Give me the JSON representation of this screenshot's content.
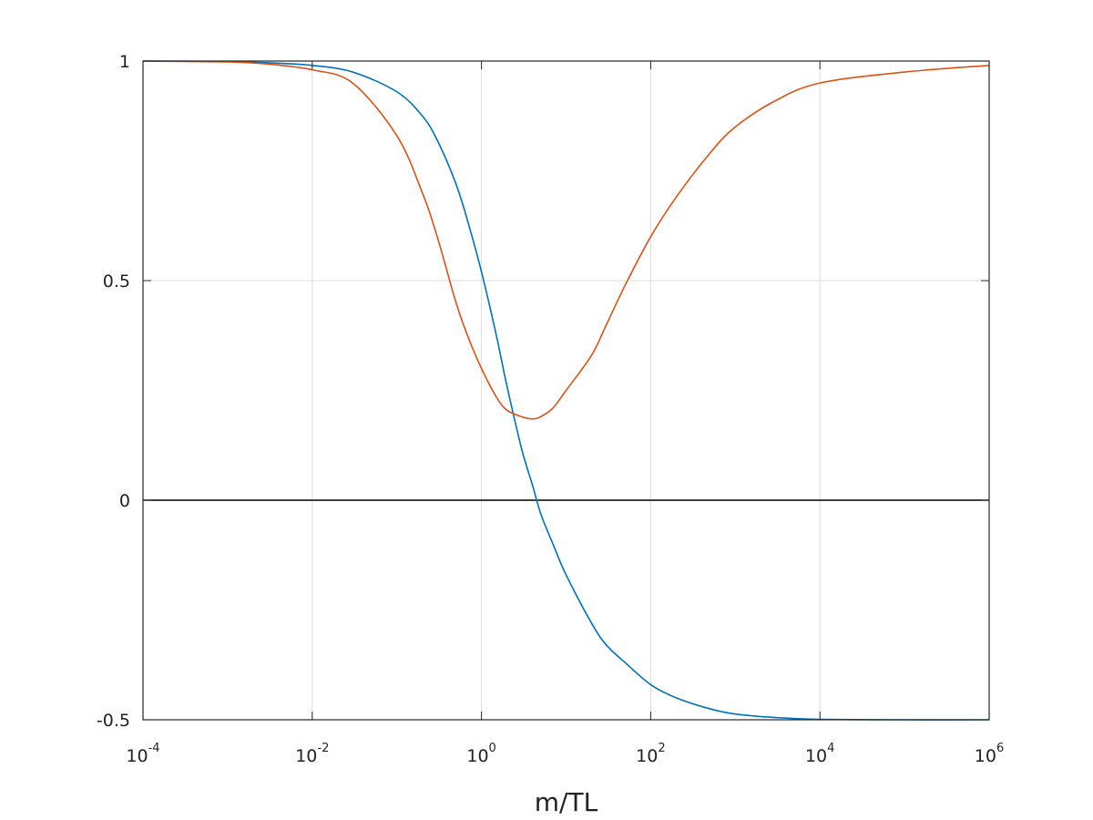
{
  "chart_data": {
    "type": "line",
    "xscale": "log",
    "xlabel": "m/TL",
    "ylabel": "",
    "title": "",
    "xlim": [
      0.0001,
      1000000
    ],
    "ylim": [
      -0.5,
      1
    ],
    "grid": true,
    "legend": "none",
    "x_ticks": [
      {
        "base": "10",
        "exp": "-4",
        "value": 0.0001
      },
      {
        "base": "10",
        "exp": "-2",
        "value": 0.01
      },
      {
        "base": "10",
        "exp": "0",
        "value": 1
      },
      {
        "base": "10",
        "exp": "2",
        "value": 100
      },
      {
        "base": "10",
        "exp": "4",
        "value": 10000
      },
      {
        "base": "10",
        "exp": "6",
        "value": 1000000
      }
    ],
    "y_ticks": [
      {
        "label": "1",
        "value": 1
      },
      {
        "label": "0.5",
        "value": 0.5
      },
      {
        "label": "0",
        "value": 0
      },
      {
        "label": "-0.5",
        "value": -0.5
      }
    ],
    "reference_line": {
      "y": 0,
      "color": "#000000"
    },
    "series": [
      {
        "color": "#0072BD",
        "x": [
          0.0001,
          0.001,
          0.003,
          0.01,
          0.03,
          0.1,
          0.2,
          0.3,
          0.5,
          0.7,
          1,
          1.5,
          2,
          3,
          4,
          5,
          7,
          10,
          20,
          30,
          50,
          100,
          200,
          500,
          1000,
          3000,
          10000,
          100000,
          1000000
        ],
        "y": [
          1.0,
          0.999,
          0.996,
          0.99,
          0.975,
          0.93,
          0.875,
          0.82,
          0.72,
          0.63,
          0.52,
          0.375,
          0.26,
          0.115,
          0.035,
          -0.03,
          -0.1,
          -0.17,
          -0.28,
          -0.33,
          -0.37,
          -0.42,
          -0.45,
          -0.475,
          -0.487,
          -0.495,
          -0.499,
          -0.5,
          -0.5
        ]
      },
      {
        "color": "#D95319",
        "x": [
          0.0001,
          0.001,
          0.003,
          0.01,
          0.03,
          0.1,
          0.2,
          0.3,
          0.5,
          0.7,
          1,
          1.5,
          2,
          3,
          4,
          5,
          7,
          10,
          20,
          30,
          50,
          100,
          200,
          500,
          1000,
          3000,
          10000,
          100000,
          1000000
        ],
        "y": [
          1.0,
          0.998,
          0.993,
          0.98,
          0.95,
          0.83,
          0.7,
          0.6,
          0.45,
          0.37,
          0.3,
          0.235,
          0.205,
          0.19,
          0.185,
          0.19,
          0.21,
          0.25,
          0.33,
          0.4,
          0.49,
          0.6,
          0.69,
          0.79,
          0.85,
          0.91,
          0.95,
          0.975,
          0.99
        ]
      }
    ]
  }
}
